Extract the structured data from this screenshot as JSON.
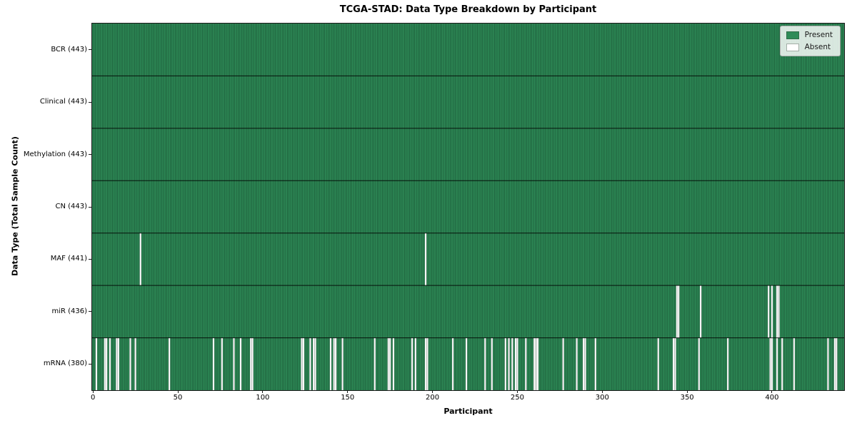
{
  "title": "TCGA-STAD: Data Type Breakdown by Participant",
  "axes": {
    "x_label": "Participant",
    "y_label": "Data Type (Total Sample Count)",
    "x_ticks": [
      0,
      50,
      100,
      150,
      200,
      250,
      300,
      350,
      400
    ]
  },
  "legend": {
    "present_label": "Present",
    "absent_label": "Absent"
  },
  "colors": {
    "present": "#2e8b57",
    "absent": "#ffffff",
    "bar_edge": "rgba(10,35,22,0.55)",
    "absent_edge": "rgba(10,35,22,0.4)",
    "row_divider": "rgba(0,0,0,0.85)",
    "spine": "#1a1a1a"
  },
  "chart_data": {
    "type": "heatmap",
    "title": "TCGA-STAD: Data Type Breakdown by Participant",
    "xlabel": "Participant",
    "ylabel": "Data Type (Total Sample Count)",
    "n_participants": 443,
    "x_range": [
      0,
      442
    ],
    "x_ticks": [
      0,
      50,
      100,
      150,
      200,
      250,
      300,
      350,
      400
    ],
    "legend_position": "upper right",
    "grid": false,
    "cell_states": [
      "Present",
      "Absent"
    ],
    "rows": [
      {
        "label": "BCR (443)",
        "data_type": "BCR",
        "present_count": 443,
        "absent_participants": []
      },
      {
        "label": "Clinical (443)",
        "data_type": "Clinical",
        "present_count": 443,
        "absent_participants": []
      },
      {
        "label": "Methylation (443)",
        "data_type": "Methylation",
        "present_count": 443,
        "absent_participants": []
      },
      {
        "label": "CN (443)",
        "data_type": "CN",
        "present_count": 443,
        "absent_participants": []
      },
      {
        "label": "MAF (441)",
        "data_type": "MAF",
        "present_count": 441,
        "absent_participants": [
          28,
          196
        ]
      },
      {
        "label": "miR (436)",
        "data_type": "miR",
        "present_count": 436,
        "absent_participants": [
          344,
          345,
          358,
          398,
          400,
          403,
          404
        ]
      },
      {
        "label": "mRNA (380)",
        "data_type": "mRNA",
        "present_count": 380,
        "absent_participants": [
          2,
          7,
          8,
          10,
          14,
          15,
          22,
          25,
          45,
          71,
          76,
          83,
          87,
          93,
          94,
          123,
          124,
          128,
          130,
          131,
          140,
          142,
          143,
          147,
          166,
          174,
          175,
          177,
          188,
          190,
          196,
          197,
          212,
          220,
          231,
          235,
          243,
          245,
          247,
          249,
          250,
          255,
          260,
          261,
          262,
          277,
          285,
          289,
          290,
          296,
          333,
          342,
          343,
          357,
          374,
          399,
          400,
          403,
          406,
          413,
          433,
          437,
          438
        ]
      }
    ]
  }
}
